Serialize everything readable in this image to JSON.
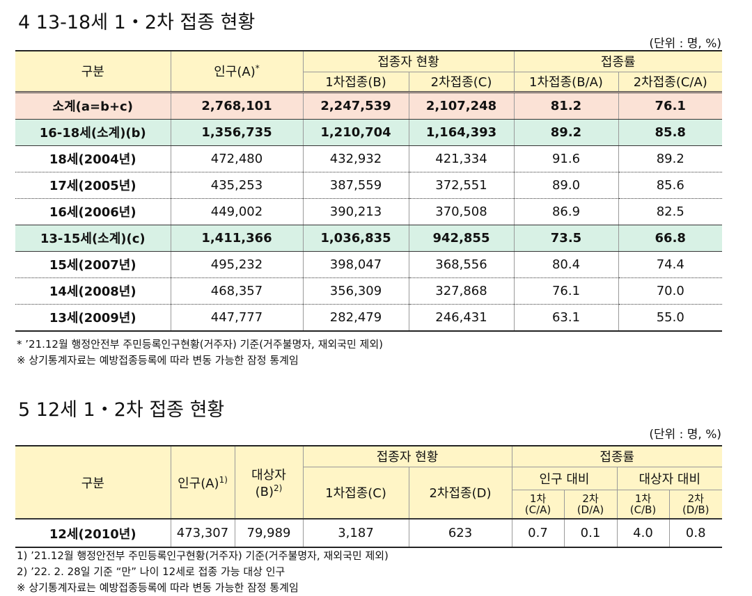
{
  "section4": {
    "title": "4  13-18세 1・2차 접종 현황",
    "unit": "(단위 : 명, %)",
    "table": {
      "header": {
        "gubun": "구분",
        "pop": "인구(A)",
        "pop_sup": "*",
        "vacc": "접종자 현황",
        "rate": "접종률",
        "d1": "1차접종(B)",
        "d2": "2차접종(C)",
        "r1": "1차접종(B/A)",
        "r2": "2차접종(C/A)"
      },
      "rows": [
        [
          "소계(a=b+c)",
          "2,768,101",
          "2,247,539",
          "2,107,248",
          "81.2",
          "76.1"
        ],
        [
          "16-18세(소계)(b)",
          "1,356,735",
          "1,210,704",
          "1,164,393",
          "89.2",
          "85.8"
        ],
        [
          "18세(2004년)",
          "472,480",
          "432,932",
          "421,334",
          "91.6",
          "89.2"
        ],
        [
          "17세(2005년)",
          "435,253",
          "387,559",
          "372,551",
          "89.0",
          "85.6"
        ],
        [
          "16세(2006년)",
          "449,002",
          "390,213",
          "370,508",
          "86.9",
          "82.5"
        ],
        [
          "13-15세(소계)(c)",
          "1,411,366",
          "1,036,835",
          "942,855",
          "73.5",
          "66.8"
        ],
        [
          "15세(2007년)",
          "495,232",
          "398,047",
          "368,556",
          "80.4",
          "74.4"
        ],
        [
          "14세(2008년)",
          "468,357",
          "356,309",
          "327,868",
          "76.1",
          "70.0"
        ],
        [
          "13세(2009년)",
          "447,777",
          "282,479",
          "246,431",
          "63.1",
          "55.0"
        ]
      ]
    },
    "notes": [
      "* ’21.12월 행정안전부 주민등록인구현황(거주자) 기준(거주불명자, 재외국민 제외)",
      "※ 상기통계자료는 예방접종등록에 따라 변동 가능한 잠정 통계임"
    ]
  },
  "section5": {
    "title": "5  12세 1・2차 접종 현황",
    "unit": "(단위 : 명, %)",
    "table": {
      "header": {
        "gubun": "구분",
        "pop": "인구(A)",
        "pop_sup": "1)",
        "target": "대상자",
        "target_b": "(B)",
        "target_sup": "2)",
        "vacc": "접종자 현황",
        "d1": "1차접종(C)",
        "d2": "2차접종(D)",
        "rate": "접종률",
        "pop_ratio": "인구 대비",
        "target_ratio": "대상자 대비",
        "sub": [
          [
            "1차",
            "(C/A)"
          ],
          [
            "2차",
            "(D/A)"
          ],
          [
            "1차",
            "(C/B)"
          ],
          [
            "2차",
            "(D/B)"
          ]
        ]
      },
      "rows": [
        [
          "12세(2010년)",
          "473,307",
          "79,989",
          "3,187",
          "623",
          "0.7",
          "0.1",
          "4.0",
          "0.8"
        ]
      ]
    },
    "notes": [
      "1) ’21.12월 행정안전부 주민등록인구현황(거주자) 기준(거주불명자, 재외국민 제외)",
      "2) ’22. 2. 28일 기준 “만” 나이 12세로 접종 가능 대상 인구",
      "※ 상기통계자료는 예방접종등록에 따라 변동 가능한 잠정 통계임"
    ]
  }
}
